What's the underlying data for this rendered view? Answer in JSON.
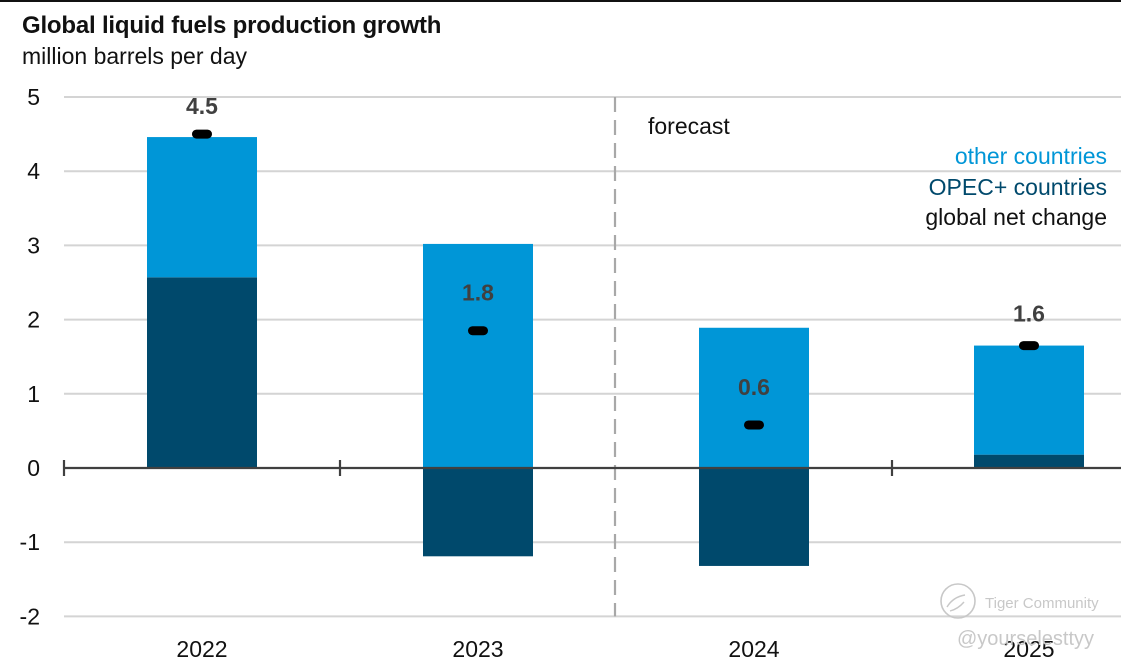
{
  "chart_data": {
    "type": "bar",
    "stacked": true,
    "title": "Global liquid fuels production growth",
    "subtitle": "million barrels per day",
    "xlabel": "",
    "ylabel": "million barrels per day",
    "categories": [
      "2022",
      "2023",
      "2024",
      "2025"
    ],
    "series": [
      {
        "name": "OPEC+ countries",
        "color": "#00496C",
        "values": [
          2.57,
          -1.19,
          -1.32,
          0.18
        ]
      },
      {
        "name": "other countries",
        "color": "#0096D7",
        "values": [
          1.89,
          3.02,
          1.89,
          1.47
        ]
      }
    ],
    "net_change": {
      "name": "global net change",
      "color": "#000000",
      "values": [
        4.5,
        1.85,
        0.58,
        1.65
      ],
      "labels": [
        "4.5",
        "1.8",
        "0.6",
        "1.6"
      ]
    },
    "ylim": [
      -2,
      5
    ],
    "yticks": [
      5,
      4,
      3,
      2,
      1,
      0,
      -1,
      -2
    ],
    "ytick_labels": [
      "5",
      "4",
      "3",
      "2",
      "1",
      "0",
      "-1",
      "-2"
    ],
    "grid": true,
    "legend": {
      "position": "top-right",
      "entries": [
        {
          "label": "other countries",
          "color": "#0096D7"
        },
        {
          "label": "OPEC+ countries",
          "color": "#00496C"
        },
        {
          "label": "global net change",
          "color": "#111111"
        }
      ]
    },
    "annotations": [
      {
        "text": "forecast",
        "note": "dashed divider between 2023 and 2024"
      }
    ]
  },
  "watermark": {
    "brand": "Tiger Community",
    "handle": "@yourselesttyy"
  }
}
